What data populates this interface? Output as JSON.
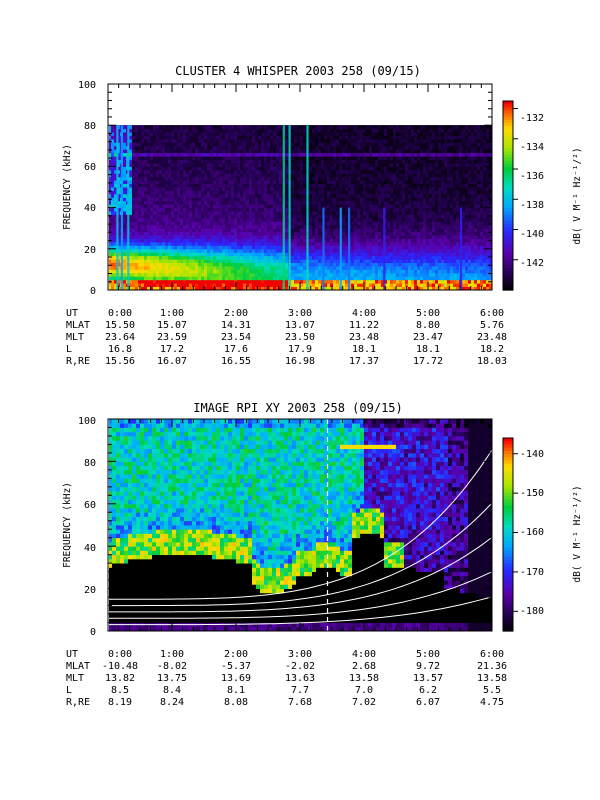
{
  "chart_data": [
    {
      "type": "heatmap",
      "title": "CLUSTER 4 WHISPER 2003 258 (09/15)",
      "ylabel": "FREQUENCY (kHz)",
      "ylim": [
        0,
        100
      ],
      "yticks": [
        "0",
        "20",
        "40",
        "60",
        "80",
        "100"
      ],
      "xlim_hours": [
        0,
        6
      ],
      "data_max_khz": 80,
      "colorbar": {
        "label": "dB( V M⁻¹ Hz⁻¹/²)",
        "range": [
          -144,
          -131.5
        ],
        "ticks": [
          "-132",
          "-134",
          "-136",
          "-138",
          "-140",
          "-142"
        ],
        "tick_values": [
          -132,
          -134,
          -136,
          -138,
          -140,
          -142
        ]
      },
      "ephemeris": {
        "UT": [
          "0:00",
          "1:00",
          "2:00",
          "3:00",
          "4:00",
          "5:00",
          "6:00"
        ],
        "MLAT": [
          "15.50",
          "15.07",
          "14.31",
          "13.07",
          "11.22",
          "8.80",
          "5.76"
        ],
        "MLT": [
          "23.64",
          "23.59",
          "23.54",
          "23.50",
          "23.48",
          "23.47",
          "23.48"
        ],
        "L": [
          "16.8",
          "17.2",
          "17.6",
          "17.9",
          "18.1",
          "18.1",
          "18.2"
        ],
        "R,RE": [
          "15.56",
          "16.07",
          "16.55",
          "16.98",
          "17.37",
          "17.72",
          "18.03"
        ]
      }
    },
    {
      "type": "heatmap",
      "title": "IMAGE RPI XY 2003 258 (09/15)",
      "ylabel": "FREQUENCY (kHz)",
      "ylim": [
        0,
        100
      ],
      "yticks": [
        "0",
        "20",
        "40",
        "60",
        "80",
        "100"
      ],
      "xlim_hours": [
        0,
        6
      ],
      "dashed_marker_hour": 3.43,
      "colorbar": {
        "label": "dB( V M⁻¹ Hz⁻¹/²)",
        "range": [
          -185,
          -136
        ],
        "ticks": [
          "-140",
          "-150",
          "-160",
          "-170",
          "-180"
        ],
        "tick_values": [
          -140,
          -150,
          -160,
          -170,
          -180
        ]
      },
      "ephemeris": {
        "UT": [
          "0:00",
          "1:00",
          "2:00",
          "3:00",
          "4:00",
          "5:00",
          "6:00"
        ],
        "MLAT": [
          "-10.48",
          "-8.02",
          "-5.37",
          "-2.02",
          "2.68",
          "9.72",
          "21.36"
        ],
        "MLT": [
          "13.82",
          "13.75",
          "13.69",
          "13.63",
          "13.58",
          "13.57",
          "13.58"
        ],
        "L": [
          "8.5",
          "8.4",
          "8.1",
          "7.7",
          "7.0",
          "6.2",
          "5.5"
        ],
        "R,RE": [
          "8.19",
          "8.24",
          "8.08",
          "7.68",
          "7.02",
          "6.07",
          "4.75"
        ]
      }
    }
  ]
}
